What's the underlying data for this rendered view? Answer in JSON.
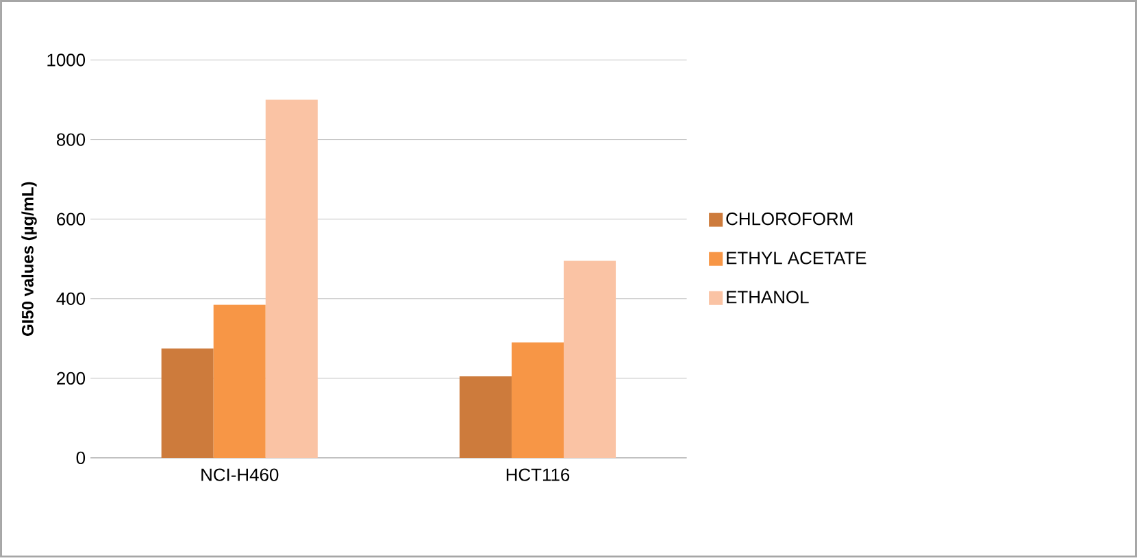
{
  "chart_data": {
    "type": "bar",
    "ylabel": "GI50 values (µg/mL)",
    "categories": [
      "NCI-H460",
      "HCT116"
    ],
    "series": [
      {
        "name": "CHLOROFORM",
        "color": "#cd7b3c",
        "values": [
          275,
          205
        ]
      },
      {
        "name": "ETHYL ACETATE",
        "color": "#f79646",
        "values": [
          385,
          290
        ]
      },
      {
        "name": "ETHANOL",
        "color": "#fac3a4",
        "values": [
          900,
          495
        ]
      }
    ],
    "ylim": [
      0,
      1000
    ],
    "yticks": [
      0,
      200,
      400,
      600,
      800,
      1000
    ],
    "grid": "y",
    "legend": "right"
  }
}
